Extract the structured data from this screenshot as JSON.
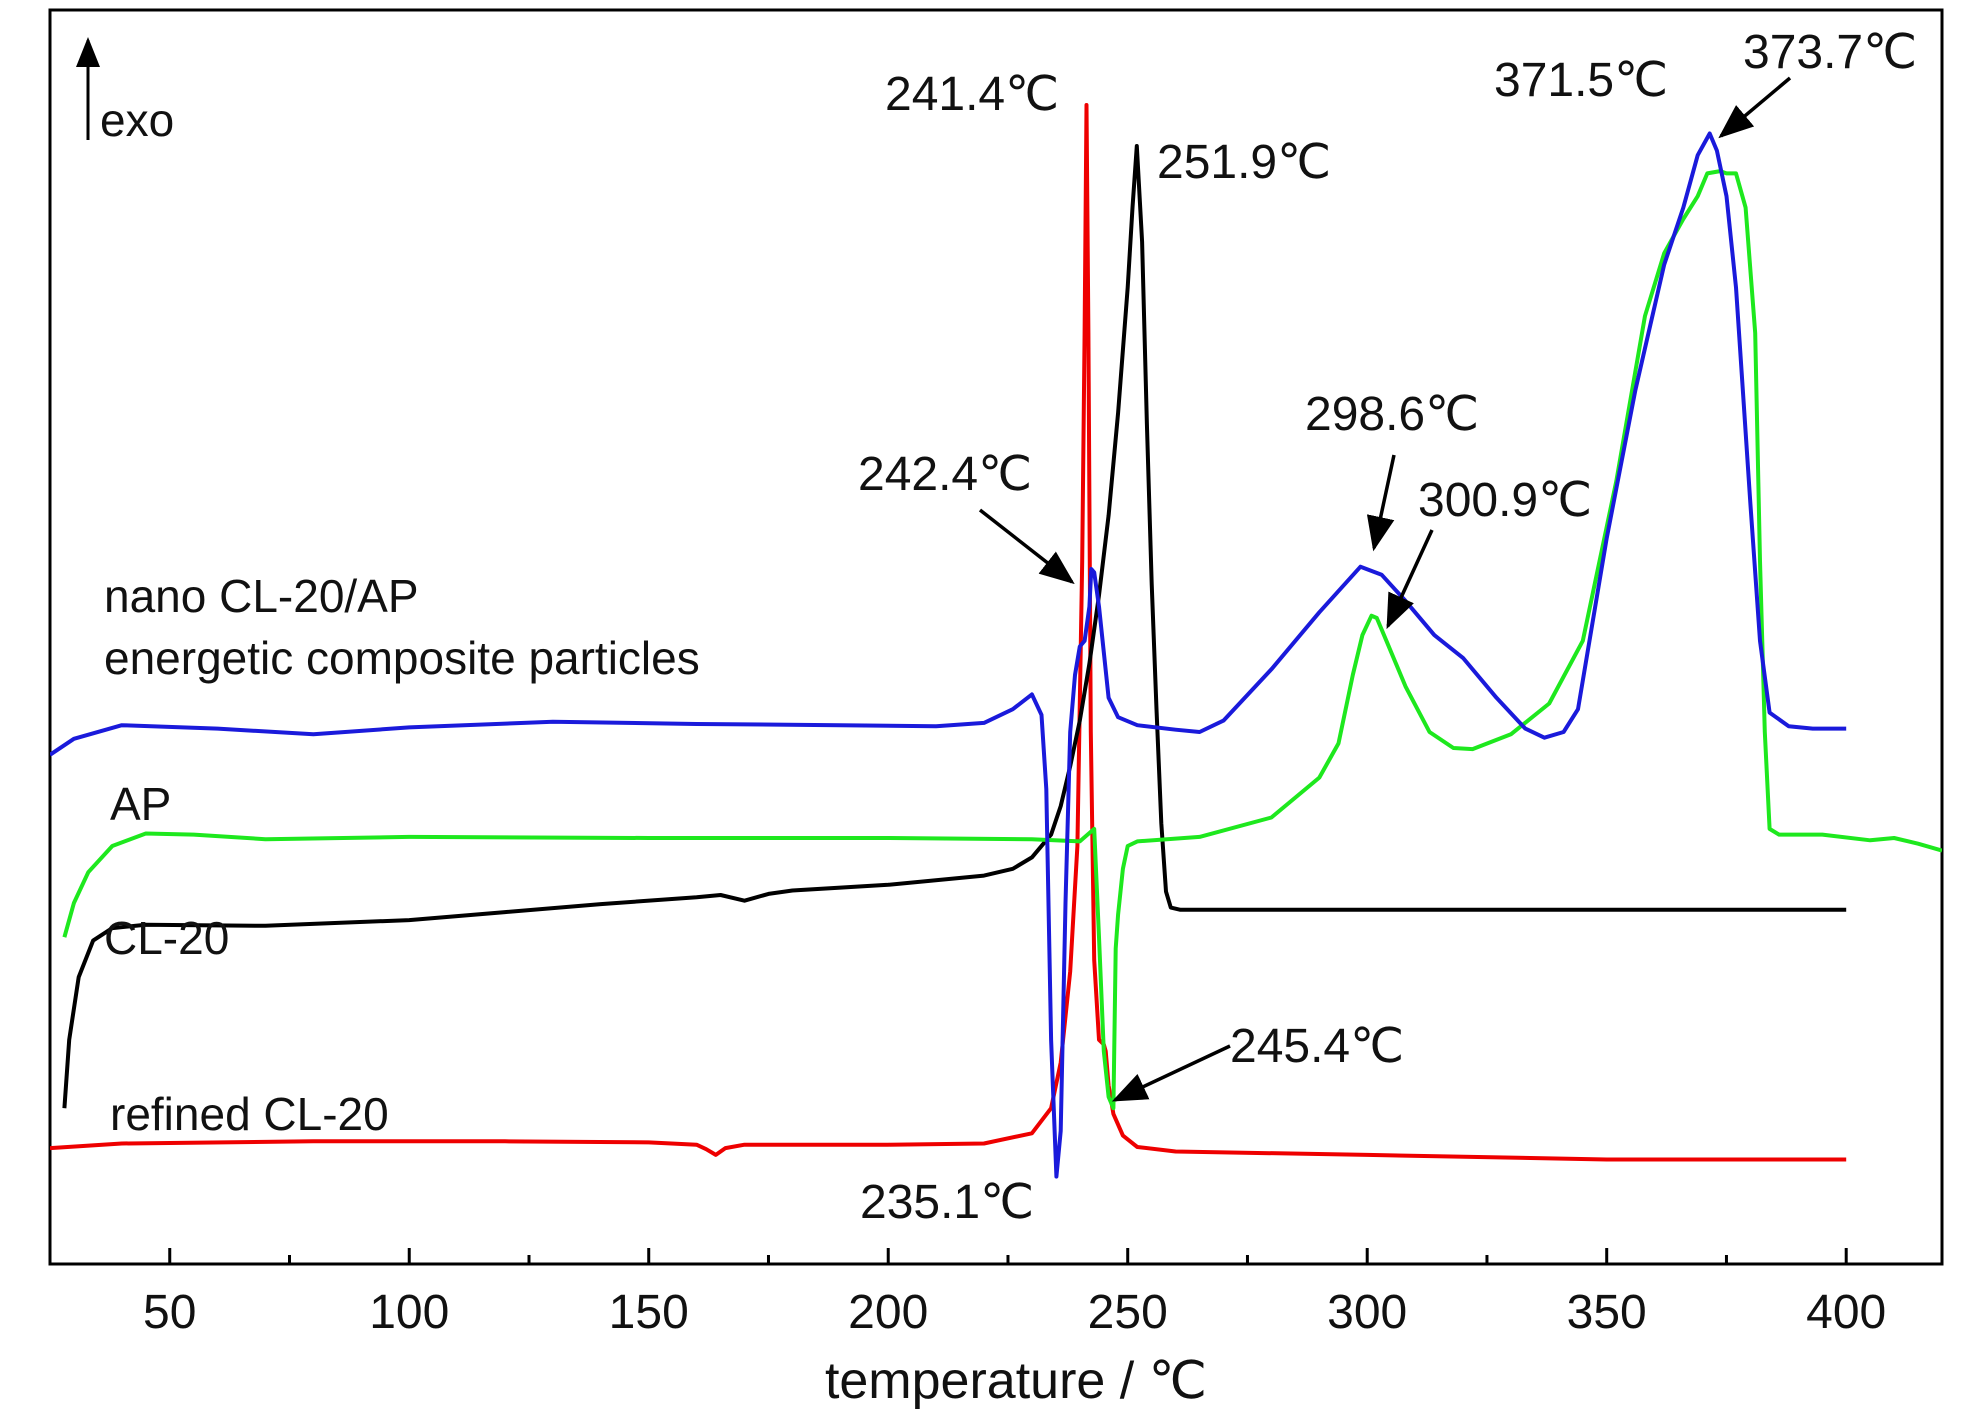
{
  "chart_data": {
    "type": "line",
    "title": "",
    "xlabel": "temperature / ℃",
    "ylabel": "",
    "xlim": [
      25,
      420
    ],
    "ylim": [
      0,
      100
    ],
    "x_ticks": [
      50,
      100,
      150,
      200,
      250,
      300,
      350,
      400
    ],
    "x_minor_step": 25,
    "grid": false,
    "legend": "none",
    "exo_label": "exo",
    "series": [
      {
        "color": "#1a1adb",
        "points": [
          [
            25,
            43
          ],
          [
            30,
            44.4
          ],
          [
            40,
            45.6
          ],
          [
            60,
            45.3
          ],
          [
            80,
            44.8
          ],
          [
            100,
            45.4
          ],
          [
            130,
            45.9
          ],
          [
            160,
            45.7
          ],
          [
            190,
            45.6
          ],
          [
            210,
            45.5
          ],
          [
            220,
            45.8
          ],
          [
            226,
            47
          ],
          [
            230,
            48.3
          ],
          [
            232,
            46.5
          ],
          [
            233,
            40
          ],
          [
            234,
            18
          ],
          [
            235.1,
            6
          ],
          [
            236,
            10
          ],
          [
            237,
            30
          ],
          [
            238,
            45
          ],
          [
            239,
            50
          ],
          [
            240,
            52.5
          ],
          [
            241,
            53
          ],
          [
            242,
            56
          ],
          [
            242.4,
            59.3
          ],
          [
            243,
            59
          ],
          [
            244,
            56
          ],
          [
            245,
            52
          ],
          [
            246,
            48
          ],
          [
            248,
            46.3
          ],
          [
            252,
            45.6
          ],
          [
            260,
            45.2
          ],
          [
            265,
            45
          ],
          [
            270,
            46
          ],
          [
            280,
            50.5
          ],
          [
            290,
            55.5
          ],
          [
            298.6,
            59.5
          ],
          [
            303,
            58.8
          ],
          [
            308,
            56.5
          ],
          [
            314,
            53.5
          ],
          [
            320,
            51.5
          ],
          [
            327,
            48
          ],
          [
            333,
            45.3
          ],
          [
            337,
            44.5
          ],
          [
            341,
            45
          ],
          [
            344,
            47
          ],
          [
            350,
            62
          ],
          [
            356,
            75
          ],
          [
            362,
            86
          ],
          [
            366,
            91
          ],
          [
            369,
            95.6
          ],
          [
            371.5,
            97.5
          ],
          [
            373,
            96
          ],
          [
            375,
            92
          ],
          [
            377,
            84
          ],
          [
            380,
            65
          ],
          [
            382,
            53
          ],
          [
            384,
            46.7
          ],
          [
            388,
            45.5
          ],
          [
            393,
            45.3
          ],
          [
            400,
            45.3
          ]
        ]
      },
      {
        "color": "#1ee81e",
        "points": [
          [
            28,
            27
          ],
          [
            30,
            30
          ],
          [
            33,
            32.7
          ],
          [
            38,
            35
          ],
          [
            45,
            36.1
          ],
          [
            55,
            36
          ],
          [
            70,
            35.6
          ],
          [
            100,
            35.8
          ],
          [
            150,
            35.7
          ],
          [
            200,
            35.7
          ],
          [
            230,
            35.6
          ],
          [
            240,
            35.4
          ],
          [
            243,
            36.5
          ],
          [
            244,
            27
          ],
          [
            245,
            17
          ],
          [
            246,
            13
          ],
          [
            247,
            12
          ],
          [
            247.5,
            26
          ],
          [
            248,
            29
          ],
          [
            249,
            33
          ],
          [
            250,
            35
          ],
          [
            252,
            35.4
          ],
          [
            265,
            35.8
          ],
          [
            280,
            37.5
          ],
          [
            290,
            41
          ],
          [
            294,
            44
          ],
          [
            297,
            50
          ],
          [
            299,
            53.5
          ],
          [
            300.9,
            55.2
          ],
          [
            302,
            55
          ],
          [
            304,
            53
          ],
          [
            308,
            49
          ],
          [
            313,
            45
          ],
          [
            318,
            43.6
          ],
          [
            322,
            43.5
          ],
          [
            330,
            44.8
          ],
          [
            338,
            47.5
          ],
          [
            345,
            53
          ],
          [
            352,
            67
          ],
          [
            358,
            81.5
          ],
          [
            362,
            87
          ],
          [
            366,
            90
          ],
          [
            369,
            92
          ],
          [
            371,
            94
          ],
          [
            373.7,
            94.2
          ],
          [
            375,
            94
          ],
          [
            377,
            94
          ],
          [
            379,
            91
          ],
          [
            381,
            80
          ],
          [
            382,
            60
          ],
          [
            383,
            45
          ],
          [
            384,
            36.5
          ],
          [
            386,
            36
          ],
          [
            395,
            36
          ],
          [
            405,
            35.5
          ],
          [
            410,
            35.7
          ],
          [
            415,
            35.2
          ],
          [
            420,
            34.6
          ]
        ]
      },
      {
        "color": "#000000",
        "points": [
          [
            28,
            12
          ],
          [
            29,
            18
          ],
          [
            31,
            23.5
          ],
          [
            34,
            26.7
          ],
          [
            38,
            27.8
          ],
          [
            45,
            28.1
          ],
          [
            70,
            28
          ],
          [
            100,
            28.5
          ],
          [
            120,
            29.2
          ],
          [
            140,
            29.9
          ],
          [
            160,
            30.5
          ],
          [
            165,
            30.7
          ],
          [
            170,
            30.2
          ],
          [
            175,
            30.8
          ],
          [
            180,
            31.1
          ],
          [
            200,
            31.6
          ],
          [
            220,
            32.4
          ],
          [
            226,
            33
          ],
          [
            230,
            34
          ],
          [
            234,
            36
          ],
          [
            236,
            38.5
          ],
          [
            238,
            42
          ],
          [
            240,
            46
          ],
          [
            242,
            51
          ],
          [
            244,
            57
          ],
          [
            246,
            64
          ],
          [
            248,
            73
          ],
          [
            250,
            84
          ],
          [
            251,
            91
          ],
          [
            251.9,
            96.4
          ],
          [
            253,
            88
          ],
          [
            254,
            72
          ],
          [
            255,
            58
          ],
          [
            256,
            47
          ],
          [
            257,
            37
          ],
          [
            258,
            31
          ],
          [
            259,
            29.6
          ],
          [
            261,
            29.4
          ],
          [
            270,
            29.4
          ],
          [
            300,
            29.4
          ],
          [
            350,
            29.4
          ],
          [
            400,
            29.4
          ]
        ]
      },
      {
        "color": "#ee0000",
        "points": [
          [
            25,
            8.5
          ],
          [
            40,
            8.9
          ],
          [
            80,
            9.1
          ],
          [
            120,
            9.1
          ],
          [
            150,
            9
          ],
          [
            160,
            8.8
          ],
          [
            162,
            8.4
          ],
          [
            164,
            7.9
          ],
          [
            166,
            8.5
          ],
          [
            170,
            8.8
          ],
          [
            200,
            8.8
          ],
          [
            220,
            8.9
          ],
          [
            230,
            9.8
          ],
          [
            234,
            12
          ],
          [
            236,
            16
          ],
          [
            238,
            24
          ],
          [
            239.5,
            35
          ],
          [
            240.5,
            60
          ],
          [
            241,
            80
          ],
          [
            241.4,
            100
          ],
          [
            241.8,
            80
          ],
          [
            242.3,
            45
          ],
          [
            243,
            25
          ],
          [
            244,
            18
          ],
          [
            245,
            17.6
          ],
          [
            245.4,
            17
          ],
          [
            246,
            14
          ],
          [
            247,
            11.5
          ],
          [
            249,
            9.6
          ],
          [
            252,
            8.6
          ],
          [
            260,
            8.2
          ],
          [
            300,
            7.9
          ],
          [
            350,
            7.5
          ],
          [
            400,
            7.5
          ]
        ]
      }
    ],
    "series_labels": [
      {
        "lines": [
          "nano CL-20/AP",
          "energetic composite particles"
        ]
      },
      {
        "lines": [
          "AP"
        ]
      },
      {
        "lines": [
          "CL-20"
        ]
      },
      {
        "lines": [
          "refined CL-20"
        ]
      }
    ],
    "annotations": [
      {
        "text": "241.4℃",
        "x": 241.4,
        "y": 100
      },
      {
        "text": "251.9℃",
        "x": 251.9,
        "y": 96.4
      },
      {
        "text": "242.4℃",
        "x": 242.4,
        "y": 59.3,
        "arrow": true
      },
      {
        "text": "298.6℃",
        "x": 298.6,
        "y": 59.5,
        "arrow": true
      },
      {
        "text": "300.9℃",
        "x": 300.9,
        "y": 55.2,
        "arrow": true
      },
      {
        "text": "371.5℃",
        "x": 371.5,
        "y": 97.5
      },
      {
        "text": "373.7℃",
        "x": 373.7,
        "y": 94.2,
        "arrow": true
      },
      {
        "text": "245.4℃",
        "x": 245.4,
        "y": 17,
        "arrow": true
      },
      {
        "text": "235.1℃",
        "x": 235.1,
        "y": 6
      }
    ]
  }
}
